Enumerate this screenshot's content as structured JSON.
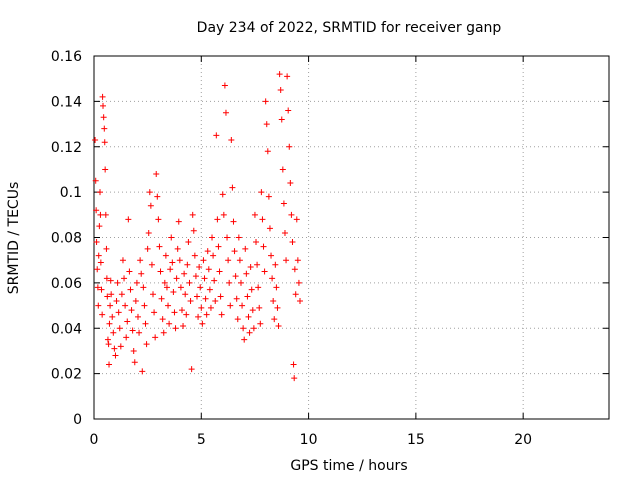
{
  "chart_data": {
    "type": "scatter",
    "title": "Day 234 of 2022, SRMTID for receiver ganp",
    "xlabel": "GPS time / hours",
    "ylabel": "SRMTID / TECUs",
    "xlim": [
      0,
      24
    ],
    "ylim": [
      0,
      0.16
    ],
    "xticks": [
      0,
      5,
      10,
      15,
      20
    ],
    "xtick_labels": [
      "0",
      "5",
      "10",
      "15",
      "20"
    ],
    "yticks": [
      0,
      0.02,
      0.04,
      0.06,
      0.08,
      0.1,
      0.12,
      0.14,
      0.16
    ],
    "ytick_labels": [
      "0",
      "0.02",
      "0.04",
      "0.06",
      "0.08",
      "0.1",
      "0.12",
      "0.14",
      "0.16"
    ],
    "grid": true,
    "marker": "plus",
    "color": "#ff0000",
    "series": [
      {
        "name": "SRMTID",
        "points": [
          [
            0.05,
            0.123
          ],
          [
            0.08,
            0.105
          ],
          [
            0.1,
            0.092
          ],
          [
            0.12,
            0.078
          ],
          [
            0.15,
            0.066
          ],
          [
            0.18,
            0.058
          ],
          [
            0.2,
            0.05
          ],
          [
            0.22,
            0.072
          ],
          [
            0.25,
            0.085
          ],
          [
            0.28,
            0.1
          ],
          [
            0.3,
            0.09
          ],
          [
            0.32,
            0.069
          ],
          [
            0.35,
            0.057
          ],
          [
            0.38,
            0.046
          ],
          [
            0.4,
            0.142
          ],
          [
            0.42,
            0.138
          ],
          [
            0.45,
            0.133
          ],
          [
            0.48,
            0.128
          ],
          [
            0.5,
            0.122
          ],
          [
            0.52,
            0.11
          ],
          [
            0.55,
            0.09
          ],
          [
            0.58,
            0.075
          ],
          [
            0.6,
            0.062
          ],
          [
            0.62,
            0.054
          ],
          [
            0.65,
            0.035
          ],
          [
            0.68,
            0.033
          ],
          [
            0.7,
            0.024
          ],
          [
            0.72,
            0.042
          ],
          [
            0.75,
            0.05
          ],
          [
            0.78,
            0.061
          ],
          [
            0.8,
            0.055
          ],
          [
            0.85,
            0.045
          ],
          [
            0.9,
            0.038
          ],
          [
            0.95,
            0.031
          ],
          [
            1.0,
            0.028
          ],
          [
            1.05,
            0.052
          ],
          [
            1.1,
            0.06
          ],
          [
            1.15,
            0.047
          ],
          [
            1.2,
            0.04
          ],
          [
            1.25,
            0.032
          ],
          [
            1.3,
            0.055
          ],
          [
            1.35,
            0.07
          ],
          [
            1.4,
            0.062
          ],
          [
            1.45,
            0.05
          ],
          [
            1.5,
            0.036
          ],
          [
            1.55,
            0.043
          ],
          [
            1.6,
            0.088
          ],
          [
            1.65,
            0.065
          ],
          [
            1.7,
            0.057
          ],
          [
            1.75,
            0.048
          ],
          [
            1.8,
            0.039
          ],
          [
            1.85,
            0.03
          ],
          [
            1.9,
            0.025
          ],
          [
            1.95,
            0.052
          ],
          [
            2.0,
            0.06
          ],
          [
            2.05,
            0.045
          ],
          [
            2.1,
            0.038
          ],
          [
            2.15,
            0.07
          ],
          [
            2.2,
            0.064
          ],
          [
            2.25,
            0.021
          ],
          [
            2.3,
            0.058
          ],
          [
            2.35,
            0.05
          ],
          [
            2.4,
            0.042
          ],
          [
            2.45,
            0.033
          ],
          [
            2.5,
            0.075
          ],
          [
            2.55,
            0.082
          ],
          [
            2.6,
            0.1
          ],
          [
            2.65,
            0.094
          ],
          [
            2.7,
            0.068
          ],
          [
            2.75,
            0.055
          ],
          [
            2.8,
            0.047
          ],
          [
            2.85,
            0.036
          ],
          [
            2.9,
            0.108
          ],
          [
            2.95,
            0.098
          ],
          [
            3.0,
            0.088
          ],
          [
            3.05,
            0.076
          ],
          [
            3.1,
            0.065
          ],
          [
            3.15,
            0.053
          ],
          [
            3.2,
            0.044
          ],
          [
            3.25,
            0.038
          ],
          [
            3.3,
            0.06
          ],
          [
            3.35,
            0.072
          ],
          [
            3.4,
            0.058
          ],
          [
            3.45,
            0.05
          ],
          [
            3.5,
            0.042
          ],
          [
            3.55,
            0.066
          ],
          [
            3.6,
            0.08
          ],
          [
            3.65,
            0.069
          ],
          [
            3.7,
            0.056
          ],
          [
            3.75,
            0.047
          ],
          [
            3.8,
            0.04
          ],
          [
            3.85,
            0.062
          ],
          [
            3.9,
            0.075
          ],
          [
            3.95,
            0.087
          ],
          [
            4.0,
            0.07
          ],
          [
            4.05,
            0.058
          ],
          [
            4.1,
            0.048
          ],
          [
            4.15,
            0.041
          ],
          [
            4.2,
            0.064
          ],
          [
            4.25,
            0.055
          ],
          [
            4.3,
            0.046
          ],
          [
            4.35,
            0.068
          ],
          [
            4.4,
            0.078
          ],
          [
            4.45,
            0.06
          ],
          [
            4.5,
            0.052
          ],
          [
            4.55,
            0.022
          ],
          [
            4.6,
            0.09
          ],
          [
            4.65,
            0.083
          ],
          [
            4.7,
            0.072
          ],
          [
            4.75,
            0.063
          ],
          [
            4.8,
            0.054
          ],
          [
            4.85,
            0.045
          ],
          [
            4.9,
            0.067
          ],
          [
            4.95,
            0.058
          ],
          [
            5.0,
            0.049
          ],
          [
            5.05,
            0.042
          ],
          [
            5.1,
            0.07
          ],
          [
            5.15,
            0.062
          ],
          [
            5.2,
            0.053
          ],
          [
            5.25,
            0.046
          ],
          [
            5.3,
            0.074
          ],
          [
            5.35,
            0.066
          ],
          [
            5.4,
            0.057
          ],
          [
            5.45,
            0.049
          ],
          [
            5.5,
            0.08
          ],
          [
            5.55,
            0.072
          ],
          [
            5.6,
            0.061
          ],
          [
            5.65,
            0.052
          ],
          [
            5.7,
            0.125
          ],
          [
            5.75,
            0.088
          ],
          [
            5.8,
            0.076
          ],
          [
            5.85,
            0.065
          ],
          [
            5.9,
            0.054
          ],
          [
            5.95,
            0.046
          ],
          [
            6.0,
            0.099
          ],
          [
            6.05,
            0.09
          ],
          [
            6.1,
            0.147
          ],
          [
            6.15,
            0.135
          ],
          [
            6.2,
            0.08
          ],
          [
            6.25,
            0.07
          ],
          [
            6.3,
            0.06
          ],
          [
            6.35,
            0.05
          ],
          [
            6.4,
            0.123
          ],
          [
            6.45,
            0.102
          ],
          [
            6.5,
            0.087
          ],
          [
            6.55,
            0.074
          ],
          [
            6.6,
            0.063
          ],
          [
            6.65,
            0.053
          ],
          [
            6.7,
            0.044
          ],
          [
            6.75,
            0.08
          ],
          [
            6.8,
            0.07
          ],
          [
            6.85,
            0.06
          ],
          [
            6.9,
            0.05
          ],
          [
            6.95,
            0.04
          ],
          [
            7.0,
            0.035
          ],
          [
            7.05,
            0.075
          ],
          [
            7.1,
            0.064
          ],
          [
            7.15,
            0.054
          ],
          [
            7.2,
            0.045
          ],
          [
            7.25,
            0.038
          ],
          [
            7.3,
            0.067
          ],
          [
            7.35,
            0.057
          ],
          [
            7.4,
            0.048
          ],
          [
            7.45,
            0.04
          ],
          [
            7.5,
            0.09
          ],
          [
            7.55,
            0.078
          ],
          [
            7.6,
            0.068
          ],
          [
            7.65,
            0.058
          ],
          [
            7.7,
            0.049
          ],
          [
            7.75,
            0.042
          ],
          [
            7.8,
            0.1
          ],
          [
            7.85,
            0.088
          ],
          [
            7.9,
            0.076
          ],
          [
            7.95,
            0.065
          ],
          [
            8.0,
            0.14
          ],
          [
            8.05,
            0.13
          ],
          [
            8.1,
            0.118
          ],
          [
            8.15,
            0.098
          ],
          [
            8.2,
            0.084
          ],
          [
            8.25,
            0.072
          ],
          [
            8.3,
            0.062
          ],
          [
            8.35,
            0.052
          ],
          [
            8.4,
            0.044
          ],
          [
            8.45,
            0.068
          ],
          [
            8.5,
            0.058
          ],
          [
            8.55,
            0.049
          ],
          [
            8.6,
            0.041
          ],
          [
            8.65,
            0.152
          ],
          [
            8.7,
            0.145
          ],
          [
            8.75,
            0.132
          ],
          [
            8.8,
            0.11
          ],
          [
            8.85,
            0.095
          ],
          [
            8.9,
            0.082
          ],
          [
            8.95,
            0.07
          ],
          [
            9.0,
            0.151
          ],
          [
            9.05,
            0.136
          ],
          [
            9.1,
            0.12
          ],
          [
            9.15,
            0.104
          ],
          [
            9.2,
            0.09
          ],
          [
            9.25,
            0.078
          ],
          [
            9.3,
            0.024
          ],
          [
            9.33,
            0.018
          ],
          [
            9.36,
            0.066
          ],
          [
            9.4,
            0.055
          ],
          [
            9.45,
            0.088
          ],
          [
            9.5,
            0.07
          ],
          [
            9.55,
            0.06
          ],
          [
            9.6,
            0.052
          ]
        ]
      }
    ]
  }
}
